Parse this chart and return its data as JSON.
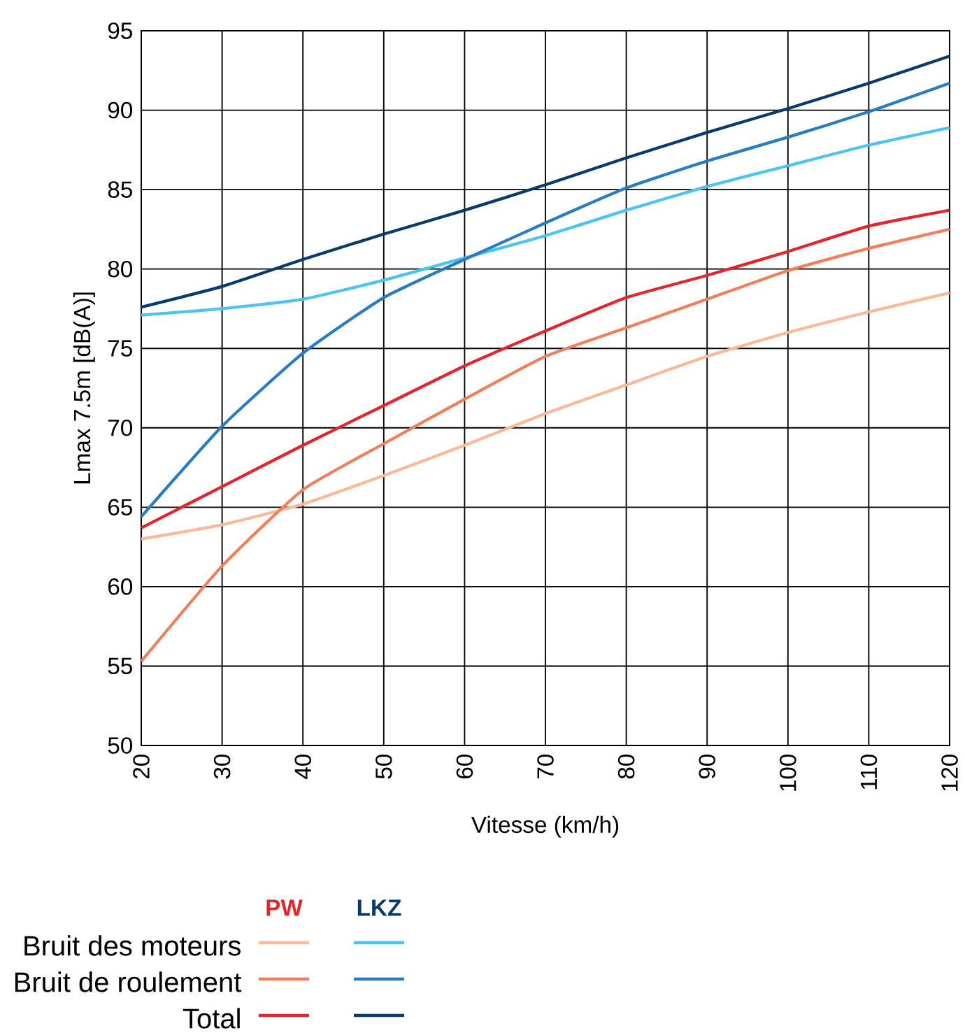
{
  "chart_data": {
    "type": "line",
    "xlabel": "Vitesse (km/h)",
    "ylabel": "Lmax 7.5m [dB(A)]",
    "x": [
      20,
      30,
      40,
      50,
      60,
      70,
      80,
      90,
      100,
      110,
      120
    ],
    "xlim": [
      20,
      120
    ],
    "xticks": [
      20,
      30,
      40,
      50,
      60,
      70,
      80,
      90,
      100,
      110,
      120
    ],
    "ylim": [
      50,
      95
    ],
    "yticks": [
      50,
      55,
      60,
      65,
      70,
      75,
      80,
      85,
      90,
      95
    ],
    "grid": true,
    "legend": "bottom left",
    "marker": "none",
    "line_style": "solid",
    "annotations": [
      "PW",
      "LKZ"
    ],
    "series": [
      {
        "name": "Bruit des moteurs",
        "color": "#f9b99a",
        "values": [
          63.0,
          63.9,
          65.2,
          67.0,
          68.9,
          70.9,
          72.7,
          74.5,
          76.0,
          77.3,
          78.5
        ]
      },
      {
        "name": "Bruit de roulement",
        "color": "#f07f5e",
        "values": [
          55.3,
          61.3,
          66.1,
          69.0,
          71.8,
          74.5,
          76.3,
          78.1,
          79.9,
          81.3,
          82.5
        ]
      },
      {
        "name": "Total",
        "color": "#e3262d",
        "values": [
          63.7,
          66.3,
          68.9,
          71.4,
          73.9,
          76.1,
          78.2,
          79.6,
          81.1,
          82.7,
          83.7
        ]
      },
      {
        "color": "#4ec3ee",
        "values": [
          77.1,
          77.5,
          78.1,
          79.3,
          80.7,
          82.1,
          83.7,
          85.2,
          86.5,
          87.8,
          88.9
        ]
      },
      {
        "color": "#2a7cc0",
        "values": [
          64.4,
          70.1,
          74.7,
          78.2,
          80.6,
          82.9,
          85.1,
          86.8,
          88.3,
          89.9,
          91.7
        ]
      },
      {
        "color": "#0a3a6b",
        "values": [
          77.6,
          78.9,
          80.6,
          82.2,
          83.7,
          85.3,
          87.0,
          88.6,
          90.1,
          91.7,
          93.4
        ]
      }
    ]
  }
}
